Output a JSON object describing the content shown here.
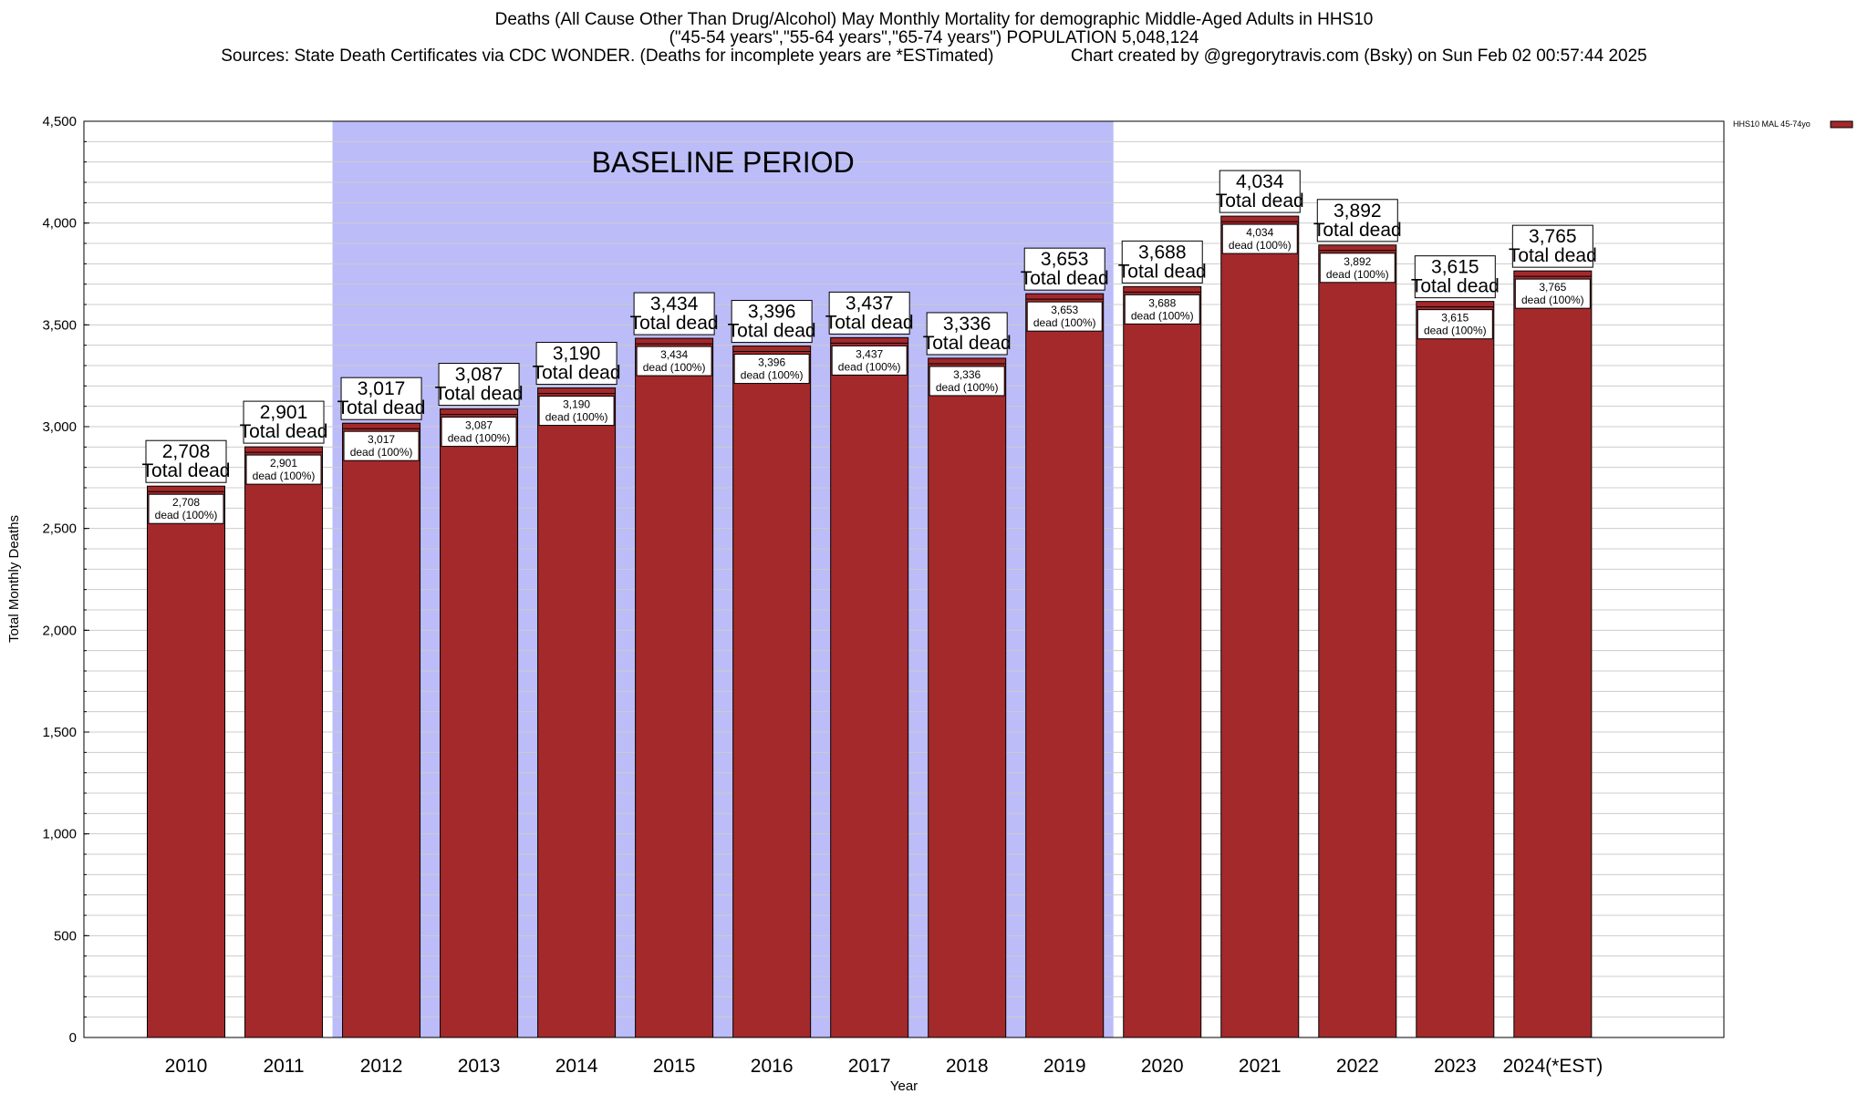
{
  "titles": {
    "line1": "Deaths (All Cause Other Than Drug/Alcohol) May Monthly Mortality for demographic Middle-Aged Adults in HHS10",
    "line2": "(\"45-54 years\",\"55-64 years\",\"65-74 years\") POPULATION 5,048,124",
    "line3": "Sources: State Death Certificates via CDC WONDER. (Deaths for incomplete years are *ESTimated)                Chart created by @gregorytravis.com (Bsky) on Sun Feb 02 00:57:44 2025"
  },
  "colors": {
    "bar": "#a3292b",
    "baseline_shade": "#bcbcf8",
    "grid": "#cccccc"
  },
  "chart_data": {
    "type": "bar",
    "xlabel": "Year",
    "ylabel": "Total Monthly Deaths",
    "ylim": [
      0,
      4500
    ],
    "yticks": [
      0,
      500,
      1000,
      1500,
      2000,
      2500,
      3000,
      3500,
      4000,
      4500
    ],
    "ytick_labels": [
      "0",
      "500",
      "1,000",
      "1,500",
      "2,000",
      "2,500",
      "3,000",
      "3,500",
      "4,000",
      "4,500"
    ],
    "grid": true,
    "categories": [
      "2010",
      "2011",
      "2012",
      "2013",
      "2014",
      "2015",
      "2016",
      "2017",
      "2018",
      "2019",
      "2020",
      "2021",
      "2022",
      "2023",
      "2024(*EST)"
    ],
    "series": [
      {
        "name": "HHS10 MAL 45-74yo",
        "values": [
          2708,
          2901,
          3017,
          3087,
          3190,
          3434,
          3396,
          3437,
          3336,
          3653,
          3688,
          4034,
          3892,
          3615,
          3765
        ]
      }
    ],
    "value_labels": [
      "2,708",
      "2,901",
      "3,017",
      "3,087",
      "3,190",
      "3,434",
      "3,396",
      "3,437",
      "3,336",
      "3,653",
      "3,688",
      "4,034",
      "3,892",
      "3,615",
      "3,765"
    ],
    "total_label": "Total dead",
    "segment_label": "dead (100%)",
    "baseline": {
      "label": "BASELINE PERIOD",
      "from": "2012",
      "to": "2019"
    },
    "legend_position": "top-right"
  }
}
